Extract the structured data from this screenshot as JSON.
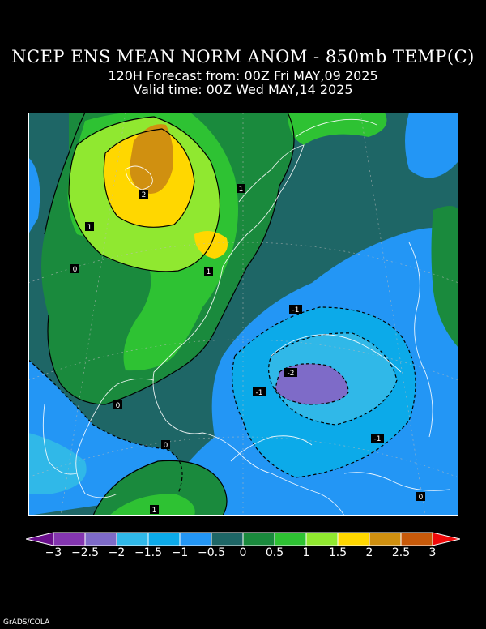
{
  "header": {
    "title": "NCEP ENS MEAN NORM ANOM - 850mb TEMP(C)",
    "forecast": "120H Forecast from: 00Z Fri MAY,09 2025",
    "valid": "Valid time: 00Z Wed MAY,14 2025"
  },
  "map": {
    "contour_labels": [
      "2",
      "1",
      "1",
      "0",
      "0",
      "0",
      "-1",
      "-1",
      "-1",
      "-2",
      "1",
      "1",
      "0"
    ]
  },
  "colorbar": {
    "colors": [
      "#6a0f8c",
      "#8436b0",
      "#7e6bc8",
      "#30b8e8",
      "#0caae9",
      "#2396f5",
      "#1e6666",
      "#1a8a3d",
      "#2ec233",
      "#90e830",
      "#ffd700",
      "#d09010",
      "#c85a0a",
      "#f00a0a"
    ],
    "ticks": [
      "−3",
      "−2.5",
      "−2",
      "−1.5",
      "−1",
      "−0.5",
      "0",
      "0.5",
      "1",
      "1.5",
      "2",
      "2.5",
      "3"
    ]
  },
  "footer": {
    "credit": "GrADS/COLA"
  }
}
